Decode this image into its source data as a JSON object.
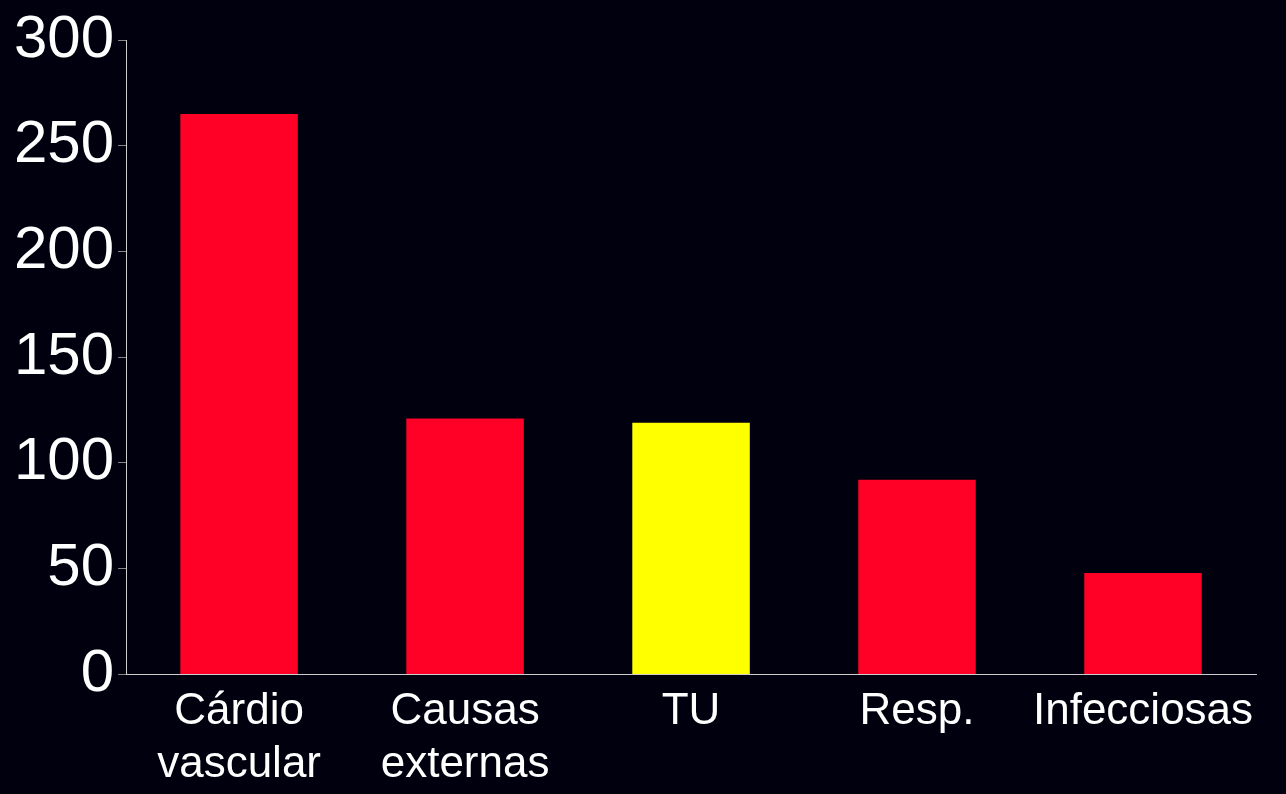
{
  "chart_data": {
    "type": "bar",
    "categories": [
      "Cárdio vascular",
      "Causas externas",
      "TU",
      "Resp.",
      "Infecciosas"
    ],
    "values": [
      265,
      121,
      119,
      92,
      48
    ],
    "colors": [
      "#ff0026",
      "#ff0026",
      "#ffff00",
      "#ff0026",
      "#ff0026"
    ],
    "ylim": [
      0,
      300
    ],
    "yticks": [
      0,
      50,
      100,
      150,
      200,
      250,
      300
    ],
    "grid": false,
    "legend": false
  }
}
